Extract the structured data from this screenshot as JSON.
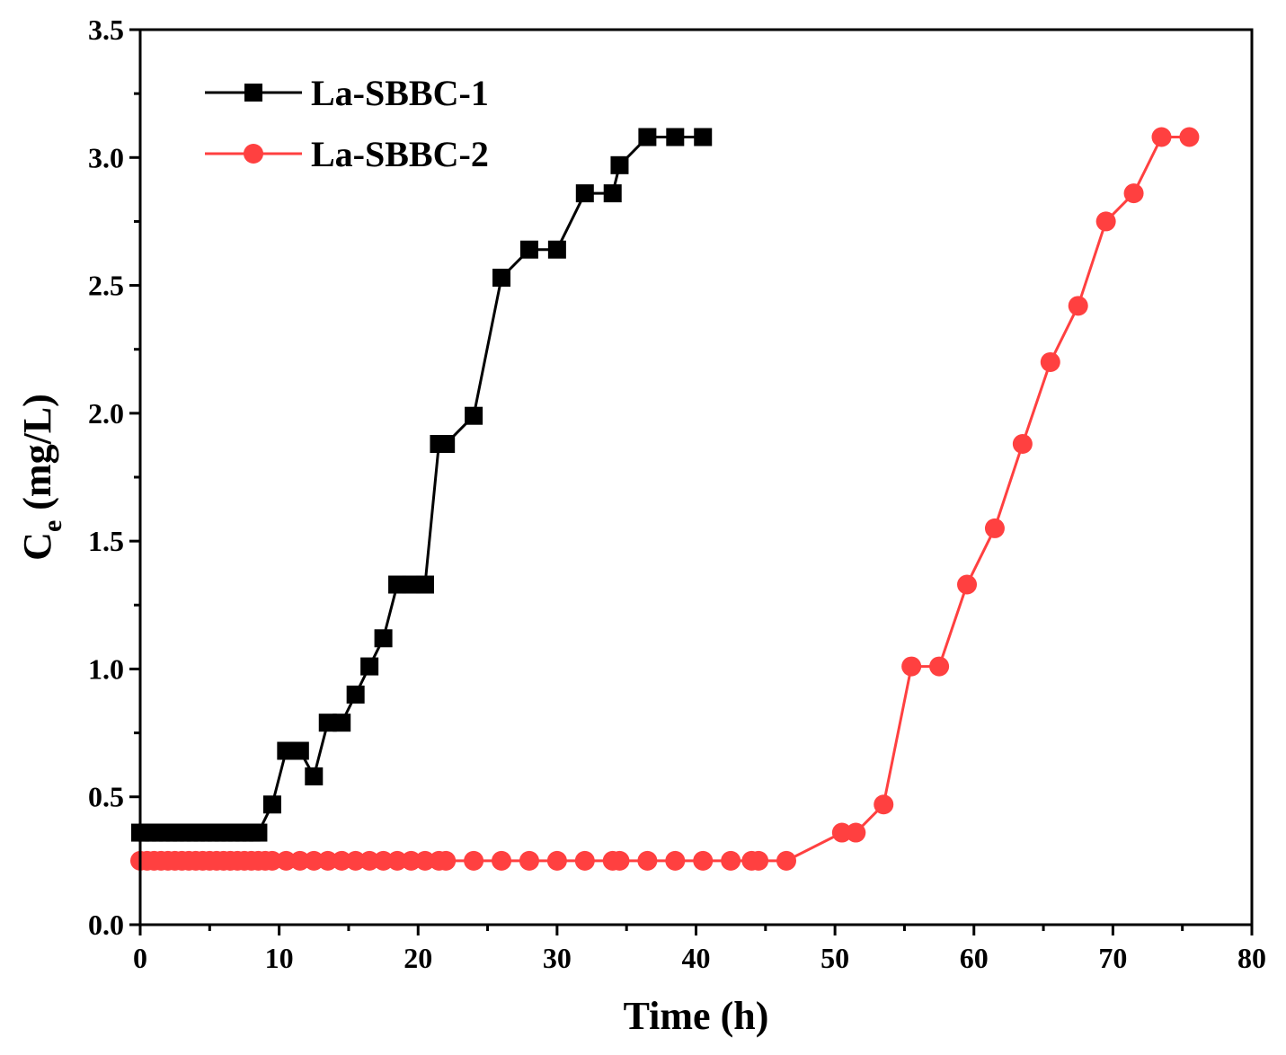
{
  "chart_data": {
    "type": "line",
    "title": "",
    "xlabel": "Time (h)",
    "ylabel_main": "C",
    "ylabel_sub": "e",
    "ylabel_rest": " (mg/L)",
    "xlim": [
      0,
      80
    ],
    "ylim": [
      0,
      3.5
    ],
    "xticks": [
      "0",
      "10",
      "20",
      "30",
      "40",
      "50",
      "60",
      "70",
      "80"
    ],
    "yticks": [
      "0.0",
      "0.5",
      "1.0",
      "1.5",
      "2.0",
      "2.5",
      "3.0",
      "3.5"
    ],
    "legend_position": "top-left",
    "series": [
      {
        "name": "La-SBBC-1",
        "color": "#000000",
        "marker": "square",
        "x": [
          0,
          0.5,
          1,
          1.5,
          2,
          2.5,
          3,
          3.5,
          4,
          4.5,
          5,
          5.5,
          6,
          6.5,
          7,
          7.5,
          8,
          8.5,
          9.5,
          10.5,
          11.5,
          12.5,
          13.5,
          14.5,
          15.5,
          16.5,
          17.5,
          18.5,
          19.5,
          20.5,
          21.5,
          22.0,
          24.0,
          26.0,
          28.0,
          30.0,
          32.0,
          34.0,
          34.5,
          36.5,
          38.5,
          40.5
        ],
        "y": [
          0.36,
          0.36,
          0.36,
          0.36,
          0.36,
          0.36,
          0.36,
          0.36,
          0.36,
          0.36,
          0.36,
          0.36,
          0.36,
          0.36,
          0.36,
          0.36,
          0.36,
          0.36,
          0.47,
          0.68,
          0.68,
          0.58,
          0.79,
          0.79,
          0.9,
          1.01,
          1.12,
          1.33,
          1.33,
          1.33,
          1.88,
          1.88,
          1.99,
          2.53,
          2.64,
          2.64,
          2.86,
          2.86,
          2.97,
          3.08,
          3.08,
          3.08
        ]
      },
      {
        "name": "La-SBBC-2",
        "color": "#ff4040",
        "marker": "circle",
        "x": [
          0,
          0.5,
          1,
          1.5,
          2,
          2.5,
          3,
          3.5,
          4,
          4.5,
          5,
          5.5,
          6,
          6.5,
          7,
          7.5,
          8,
          8.5,
          9,
          9.5,
          10.5,
          11.5,
          12.5,
          13.5,
          14.5,
          15.5,
          16.5,
          17.5,
          18.5,
          19.5,
          20.5,
          21.5,
          22.0,
          24.0,
          26.0,
          28.0,
          30.0,
          32.0,
          34.0,
          34.5,
          36.5,
          38.5,
          40.5,
          42.5,
          44.0,
          44.5,
          46.5,
          50.5,
          51.5,
          53.5,
          55.5,
          57.5,
          59.5,
          61.5,
          63.5,
          65.5,
          67.5,
          69.5,
          71.5,
          73.5,
          75.5
        ],
        "y": [
          0.25,
          0.25,
          0.25,
          0.25,
          0.25,
          0.25,
          0.25,
          0.25,
          0.25,
          0.25,
          0.25,
          0.25,
          0.25,
          0.25,
          0.25,
          0.25,
          0.25,
          0.25,
          0.25,
          0.25,
          0.25,
          0.25,
          0.25,
          0.25,
          0.25,
          0.25,
          0.25,
          0.25,
          0.25,
          0.25,
          0.25,
          0.25,
          0.25,
          0.25,
          0.25,
          0.25,
          0.25,
          0.25,
          0.25,
          0.25,
          0.25,
          0.25,
          0.25,
          0.25,
          0.25,
          0.25,
          0.25,
          0.36,
          0.36,
          0.47,
          1.01,
          1.01,
          1.33,
          1.55,
          1.88,
          2.2,
          2.42,
          2.75,
          2.86,
          3.08,
          3.08
        ]
      }
    ]
  }
}
